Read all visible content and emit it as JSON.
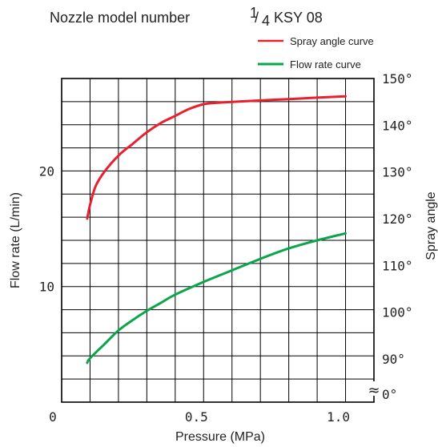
{
  "chart_data": {
    "type": "line",
    "title": "Nozzle model number",
    "model_fraction_num": "1",
    "model_fraction_den": "4",
    "model_code": "KSY 08",
    "xlabel": "Pressure (MPa)",
    "ylabel_left": "Flow rate (L/min)",
    "ylabel_right": "Spray angle",
    "xlim": [
      0,
      1.1
    ],
    "ylim_left": [
      0,
      28
    ],
    "x_ticks": [
      {
        "value": 0,
        "label": "0"
      },
      {
        "value": 0.5,
        "label": "0.5"
      },
      {
        "value": 1.0,
        "label": "1.0"
      }
    ],
    "y_left_ticks": [
      {
        "value": 10,
        "label": "10"
      },
      {
        "value": 20,
        "label": "20"
      }
    ],
    "y_right_ticks": [
      {
        "value": 0,
        "label": "0°"
      },
      {
        "value": 90,
        "label": "90°"
      },
      {
        "value": 100,
        "label": "100°"
      },
      {
        "value": 110,
        "label": "110°"
      },
      {
        "value": 120,
        "label": "120°"
      },
      {
        "value": 130,
        "label": "130°"
      },
      {
        "value": 140,
        "label": "140°"
      },
      {
        "value": 150,
        "label": "150°"
      }
    ],
    "right_axis_break": "≈",
    "grid": true,
    "legend_position": "top-right",
    "series": [
      {
        "name": "Spray angle curve",
        "axis": "right",
        "color": "#e8212e",
        "x": [
          0.09,
          0.1,
          0.12,
          0.15,
          0.2,
          0.25,
          0.3,
          0.35,
          0.4,
          0.45,
          0.5,
          0.55,
          0.6,
          0.7,
          0.8,
          0.9,
          1.0
        ],
        "y": [
          120,
          123,
          127,
          130,
          133.5,
          136,
          138.5,
          140.5,
          142,
          143.5,
          144.5,
          144.8,
          145,
          145.3,
          145.6,
          145.9,
          146.2
        ]
      },
      {
        "name": "Flow rate curve",
        "axis": "left",
        "color": "#0aa64a",
        "x": [
          0.09,
          0.1,
          0.15,
          0.2,
          0.25,
          0.3,
          0.35,
          0.4,
          0.5,
          0.6,
          0.7,
          0.8,
          0.9,
          1.0
        ],
        "y": [
          3.4,
          3.8,
          5.0,
          6.2,
          7.1,
          7.9,
          8.6,
          9.3,
          10.4,
          11.4,
          12.4,
          13.3,
          14.0,
          14.6
        ]
      }
    ]
  }
}
